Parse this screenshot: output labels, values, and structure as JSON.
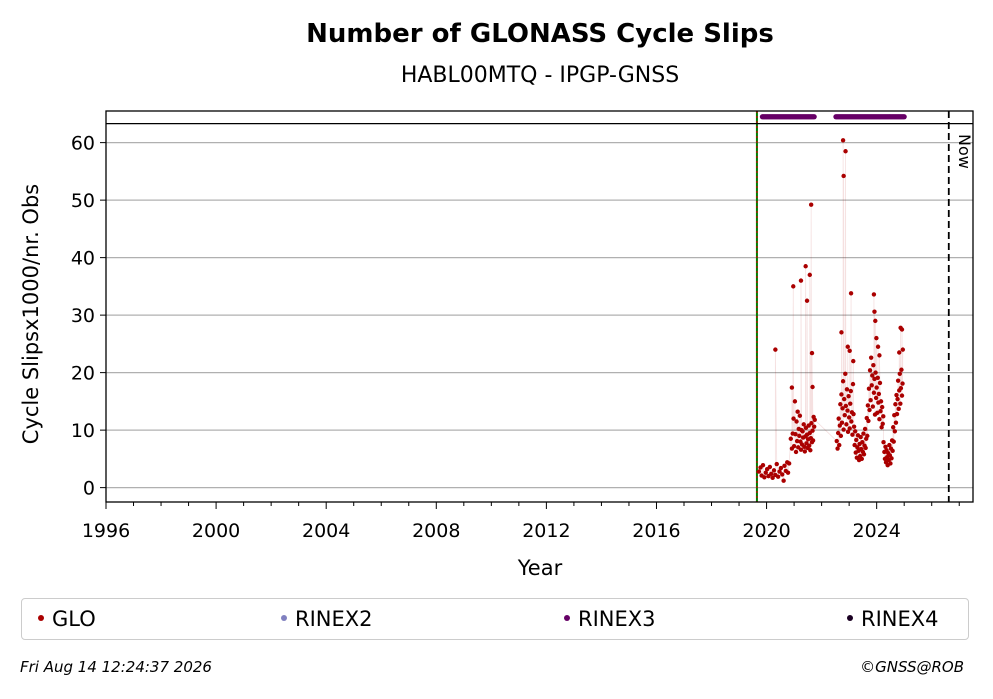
{
  "chart_data": {
    "type": "scatter",
    "title": "Number of GLONASS Cycle Slips",
    "subtitle": "HABL00MTQ - IPGP-GNSS",
    "xlabel": "Year",
    "ylabel": "Cycle Slipsx1000/nr. Obs",
    "xlim": [
      1996.0,
      2027.5
    ],
    "ylim": [
      -2.5,
      65.5
    ],
    "x_ticks": [
      "1996",
      "2000",
      "2004",
      "2008",
      "2012",
      "2016",
      "2020",
      "2024"
    ],
    "y_ticks": [
      "0",
      "10",
      "20",
      "30",
      "40",
      "50",
      "60"
    ],
    "grid": "horizontal",
    "start_line_x": 2019.65,
    "now_line_x": 2026.62,
    "now_label": "Now",
    "series": [
      {
        "name": "GLO",
        "color": "#aa0000",
        "points": [
          [
            2019.72,
            2.8
          ],
          [
            2019.78,
            3.5
          ],
          [
            2019.82,
            2.1
          ],
          [
            2019.87,
            3.9
          ],
          [
            2019.92,
            1.8
          ],
          [
            2019.97,
            2.6
          ],
          [
            2020.02,
            3.2
          ],
          [
            2020.07,
            2.0
          ],
          [
            2020.12,
            3.6
          ],
          [
            2020.17,
            2.4
          ],
          [
            2020.22,
            1.7
          ],
          [
            2020.27,
            3.0
          ],
          [
            2020.32,
            2.2
          ],
          [
            2020.37,
            4.1
          ],
          [
            2020.42,
            1.9
          ],
          [
            2020.47,
            2.8
          ],
          [
            2020.52,
            3.4
          ],
          [
            2020.57,
            2.3
          ],
          [
            2020.62,
            1.2
          ],
          [
            2020.65,
            3.8
          ],
          [
            2020.7,
            2.9
          ],
          [
            2020.75,
            4.4
          ],
          [
            2020.78,
            2.6
          ],
          [
            2020.82,
            4.2
          ],
          [
            2020.32,
            24.0
          ],
          [
            2020.88,
            8.5
          ],
          [
            2020.92,
            6.8
          ],
          [
            2020.95,
            9.4
          ],
          [
            2020.98,
            12.0
          ],
          [
            2021.0,
            7.2
          ],
          [
            2021.03,
            15.0
          ],
          [
            2021.05,
            9.3
          ],
          [
            2021.07,
            6.2
          ],
          [
            2021.09,
            11.5
          ],
          [
            2021.11,
            8.1
          ],
          [
            2021.13,
            13.2
          ],
          [
            2021.15,
            7.0
          ],
          [
            2021.17,
            10.2
          ],
          [
            2021.19,
            9.0
          ],
          [
            2021.21,
            12.5
          ],
          [
            2021.23,
            8.0
          ],
          [
            2021.25,
            6.6
          ],
          [
            2021.27,
            10.0
          ],
          [
            2021.29,
            7.5
          ],
          [
            2021.31,
            9.8
          ],
          [
            2021.33,
            8.7
          ],
          [
            2021.35,
            11.0
          ],
          [
            2021.37,
            7.1
          ],
          [
            2021.39,
            6.3
          ],
          [
            2021.41,
            8.9
          ],
          [
            2021.43,
            10.4
          ],
          [
            2021.45,
            7.7
          ],
          [
            2021.47,
            9.2
          ],
          [
            2021.49,
            6.9
          ],
          [
            2021.51,
            8.4
          ],
          [
            2021.53,
            10.8
          ],
          [
            2021.55,
            7.3
          ],
          [
            2021.57,
            9.5
          ],
          [
            2021.59,
            6.5
          ],
          [
            2021.61,
            8.6
          ],
          [
            2021.63,
            11.2
          ],
          [
            2021.65,
            7.9
          ],
          [
            2021.67,
            9.9
          ],
          [
            2021.69,
            8.2
          ],
          [
            2021.71,
            12.3
          ],
          [
            2021.73,
            10.6
          ],
          [
            2021.75,
            11.8
          ],
          [
            2020.92,
            17.4
          ],
          [
            2020.97,
            35.0
          ],
          [
            2021.25,
            36.0
          ],
          [
            2021.42,
            38.5
          ],
          [
            2021.47,
            32.5
          ],
          [
            2021.57,
            37.0
          ],
          [
            2021.62,
            49.2
          ],
          [
            2021.65,
            23.4
          ],
          [
            2021.67,
            17.5
          ],
          [
            2022.55,
            8.1
          ],
          [
            2022.58,
            6.8
          ],
          [
            2022.6,
            9.5
          ],
          [
            2022.62,
            12.0
          ],
          [
            2022.64,
            7.4
          ],
          [
            2022.66,
            10.8
          ],
          [
            2022.68,
            14.5
          ],
          [
            2022.7,
            9.0
          ],
          [
            2022.72,
            16.2
          ],
          [
            2022.74,
            11.3
          ],
          [
            2022.76,
            13.8
          ],
          [
            2022.78,
            18.5
          ],
          [
            2022.8,
            10.1
          ],
          [
            2022.82,
            15.4
          ],
          [
            2022.84,
            12.6
          ],
          [
            2022.86,
            19.8
          ],
          [
            2022.88,
            14.2
          ],
          [
            2022.9,
            11.0
          ],
          [
            2022.92,
            17.1
          ],
          [
            2022.94,
            13.4
          ],
          [
            2022.96,
            9.7
          ],
          [
            2022.98,
            15.9
          ],
          [
            2023.0,
            12.2
          ],
          [
            2023.02,
            10.3
          ],
          [
            2023.04,
            14.6
          ],
          [
            2023.06,
            16.8
          ],
          [
            2023.08,
            11.5
          ],
          [
            2023.1,
            13.1
          ],
          [
            2023.12,
            9.2
          ],
          [
            2023.14,
            18.0
          ],
          [
            2023.16,
            12.8
          ],
          [
            2023.18,
            10.6
          ],
          [
            2023.2,
            7.4
          ],
          [
            2023.22,
            9.8
          ],
          [
            2023.24,
            6.1
          ],
          [
            2023.26,
            8.3
          ],
          [
            2023.28,
            5.2
          ],
          [
            2023.3,
            7.0
          ],
          [
            2023.32,
            9.1
          ],
          [
            2023.34,
            6.4
          ],
          [
            2023.36,
            4.8
          ],
          [
            2023.38,
            7.6
          ],
          [
            2023.4,
            5.5
          ],
          [
            2023.42,
            8.8
          ],
          [
            2023.44,
            6.7
          ],
          [
            2023.46,
            5.0
          ],
          [
            2023.48,
            7.9
          ],
          [
            2023.5,
            6.2
          ],
          [
            2023.52,
            9.4
          ],
          [
            2023.54,
            5.8
          ],
          [
            2023.56,
            7.3
          ],
          [
            2023.58,
            10.2
          ],
          [
            2023.6,
            6.9
          ],
          [
            2023.62,
            8.5
          ],
          [
            2023.64,
            12.1
          ],
          [
            2023.66,
            9.0
          ],
          [
            2023.68,
            14.3
          ],
          [
            2023.7,
            11.6
          ],
          [
            2023.72,
            17.2
          ],
          [
            2023.74,
            13.5
          ],
          [
            2023.76,
            20.4
          ],
          [
            2023.78,
            15.2
          ],
          [
            2023.8,
            22.6
          ],
          [
            2023.82,
            17.8
          ],
          [
            2023.84,
            19.5
          ],
          [
            2023.86,
            14.1
          ],
          [
            2023.88,
            21.3
          ],
          [
            2023.9,
            16.5
          ],
          [
            2023.92,
            18.9
          ],
          [
            2023.94,
            12.7
          ],
          [
            2023.96,
            20.0
          ],
          [
            2023.98,
            15.6
          ],
          [
            2024.0,
            17.4
          ],
          [
            2024.02,
            13.0
          ],
          [
            2024.04,
            19.1
          ],
          [
            2024.06,
            14.8
          ],
          [
            2024.08,
            16.3
          ],
          [
            2024.1,
            11.9
          ],
          [
            2024.12,
            18.2
          ],
          [
            2024.14,
            13.3
          ],
          [
            2024.16,
            15.0
          ],
          [
            2024.18,
            10.5
          ],
          [
            2024.2,
            14.0
          ],
          [
            2024.22,
            11.1
          ],
          [
            2024.24,
            12.4
          ],
          [
            2022.72,
            27.0
          ],
          [
            2022.78,
            60.4
          ],
          [
            2022.8,
            54.2
          ],
          [
            2022.87,
            58.5
          ],
          [
            2022.95,
            24.5
          ],
          [
            2023.02,
            23.8
          ],
          [
            2023.07,
            33.8
          ],
          [
            2023.15,
            22.0
          ],
          [
            2023.9,
            33.6
          ],
          [
            2023.92,
            30.6
          ],
          [
            2023.95,
            29.0
          ],
          [
            2023.99,
            26.0
          ],
          [
            2024.05,
            24.5
          ],
          [
            2024.1,
            23.0
          ],
          [
            2024.25,
            7.9
          ],
          [
            2024.28,
            6.2
          ],
          [
            2024.3,
            5.0
          ],
          [
            2024.32,
            7.1
          ],
          [
            2024.34,
            4.4
          ],
          [
            2024.36,
            6.5
          ],
          [
            2024.38,
            5.3
          ],
          [
            2024.4,
            3.9
          ],
          [
            2024.42,
            6.0
          ],
          [
            2024.44,
            4.8
          ],
          [
            2024.46,
            7.4
          ],
          [
            2024.48,
            5.6
          ],
          [
            2024.5,
            4.2
          ],
          [
            2024.52,
            6.8
          ],
          [
            2024.54,
            5.1
          ],
          [
            2024.56,
            8.2
          ],
          [
            2024.58,
            6.4
          ],
          [
            2024.6,
            10.5
          ],
          [
            2024.62,
            8.0
          ],
          [
            2024.64,
            12.6
          ],
          [
            2024.66,
            9.8
          ],
          [
            2024.68,
            14.5
          ],
          [
            2024.7,
            11.3
          ],
          [
            2024.72,
            16.1
          ],
          [
            2024.74,
            12.8
          ],
          [
            2024.76,
            15.4
          ],
          [
            2024.78,
            18.6
          ],
          [
            2024.8,
            13.7
          ],
          [
            2024.82,
            16.9
          ],
          [
            2024.84,
            19.8
          ],
          [
            2024.86,
            14.6
          ],
          [
            2024.88,
            17.3
          ],
          [
            2024.9,
            20.5
          ],
          [
            2024.92,
            16.0
          ],
          [
            2024.94,
            18.1
          ],
          [
            2024.82,
            23.5
          ],
          [
            2024.87,
            27.8
          ],
          [
            2024.92,
            27.5
          ],
          [
            2024.95,
            24.0
          ]
        ]
      },
      {
        "name": "RINEX3",
        "color": "#660066",
        "marker_y": 64.5,
        "x_ranges": [
          [
            2019.85,
            2021.75
          ],
          [
            2022.52,
            2025.02
          ]
        ]
      }
    ]
  },
  "legend": {
    "glo": {
      "label": "GLO",
      "color": "#aa0000"
    },
    "rinex2": {
      "label": "RINEX2",
      "color": "#8080c0"
    },
    "rinex3": {
      "label": "RINEX3",
      "color": "#660066"
    },
    "rinex4": {
      "label": "RINEX4",
      "color": "#1a0022"
    }
  },
  "footer": {
    "timestamp": "Fri Aug 14 12:24:37 2026",
    "credit": "©GNSS@ROB"
  }
}
